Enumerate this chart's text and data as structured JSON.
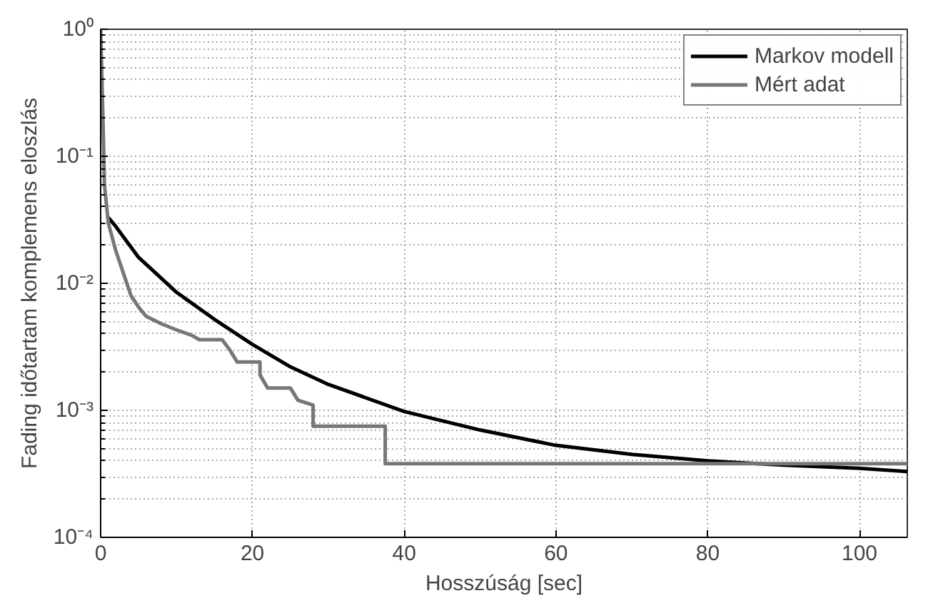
{
  "chart_data": {
    "type": "line",
    "xlabel": "Hosszúság [sec]",
    "ylabel": "Fading időtartam komplemens eloszlás",
    "log": "y",
    "grid": true,
    "legend": "top right",
    "line_style": "solid",
    "marker": "none",
    "xlim": [
      0,
      106.3
    ],
    "xticks": [
      0,
      20,
      40,
      60,
      80,
      100
    ],
    "ylim": [
      0.0001,
      1
    ],
    "yticks": [
      {
        "value": 1,
        "label": "10⁰"
      },
      {
        "value": 0.1,
        "label": "10⁻¹"
      },
      {
        "value": 0.01,
        "label": "10⁻²"
      },
      {
        "value": 0.001,
        "label": "10⁻³"
      },
      {
        "value": 0.0001,
        "label": "10⁻⁴"
      }
    ],
    "series": [
      {
        "name": "Markov modell",
        "color": "#000000",
        "x": [
          1,
          2,
          5,
          10,
          15,
          20,
          25,
          30,
          40,
          50,
          60,
          70,
          80,
          90,
          100,
          106.3
        ],
        "values": [
          0.033,
          0.028,
          0.016,
          0.0085,
          0.0052,
          0.0033,
          0.0022,
          0.0016,
          0.00098,
          0.0007,
          0.00053,
          0.00045,
          0.0004,
          0.00037,
          0.00035,
          0.00033
        ]
      },
      {
        "name": "Mért adat",
        "color": "#777777",
        "x": [
          0,
          0.3,
          0.5,
          1,
          2,
          3,
          4,
          5,
          6,
          8,
          10,
          12,
          13,
          16,
          17,
          18,
          21,
          21,
          22,
          25,
          26,
          28,
          28,
          37.5,
          37.5,
          106.3
        ],
        "values": [
          1,
          0.2,
          0.06,
          0.03,
          0.018,
          0.012,
          0.008,
          0.0065,
          0.0055,
          0.0048,
          0.0043,
          0.0039,
          0.0036,
          0.0036,
          0.003,
          0.0024,
          0.0024,
          0.0019,
          0.0015,
          0.0015,
          0.0012,
          0.0011,
          0.00075,
          0.00075,
          0.00038,
          0.00038
        ]
      }
    ]
  }
}
